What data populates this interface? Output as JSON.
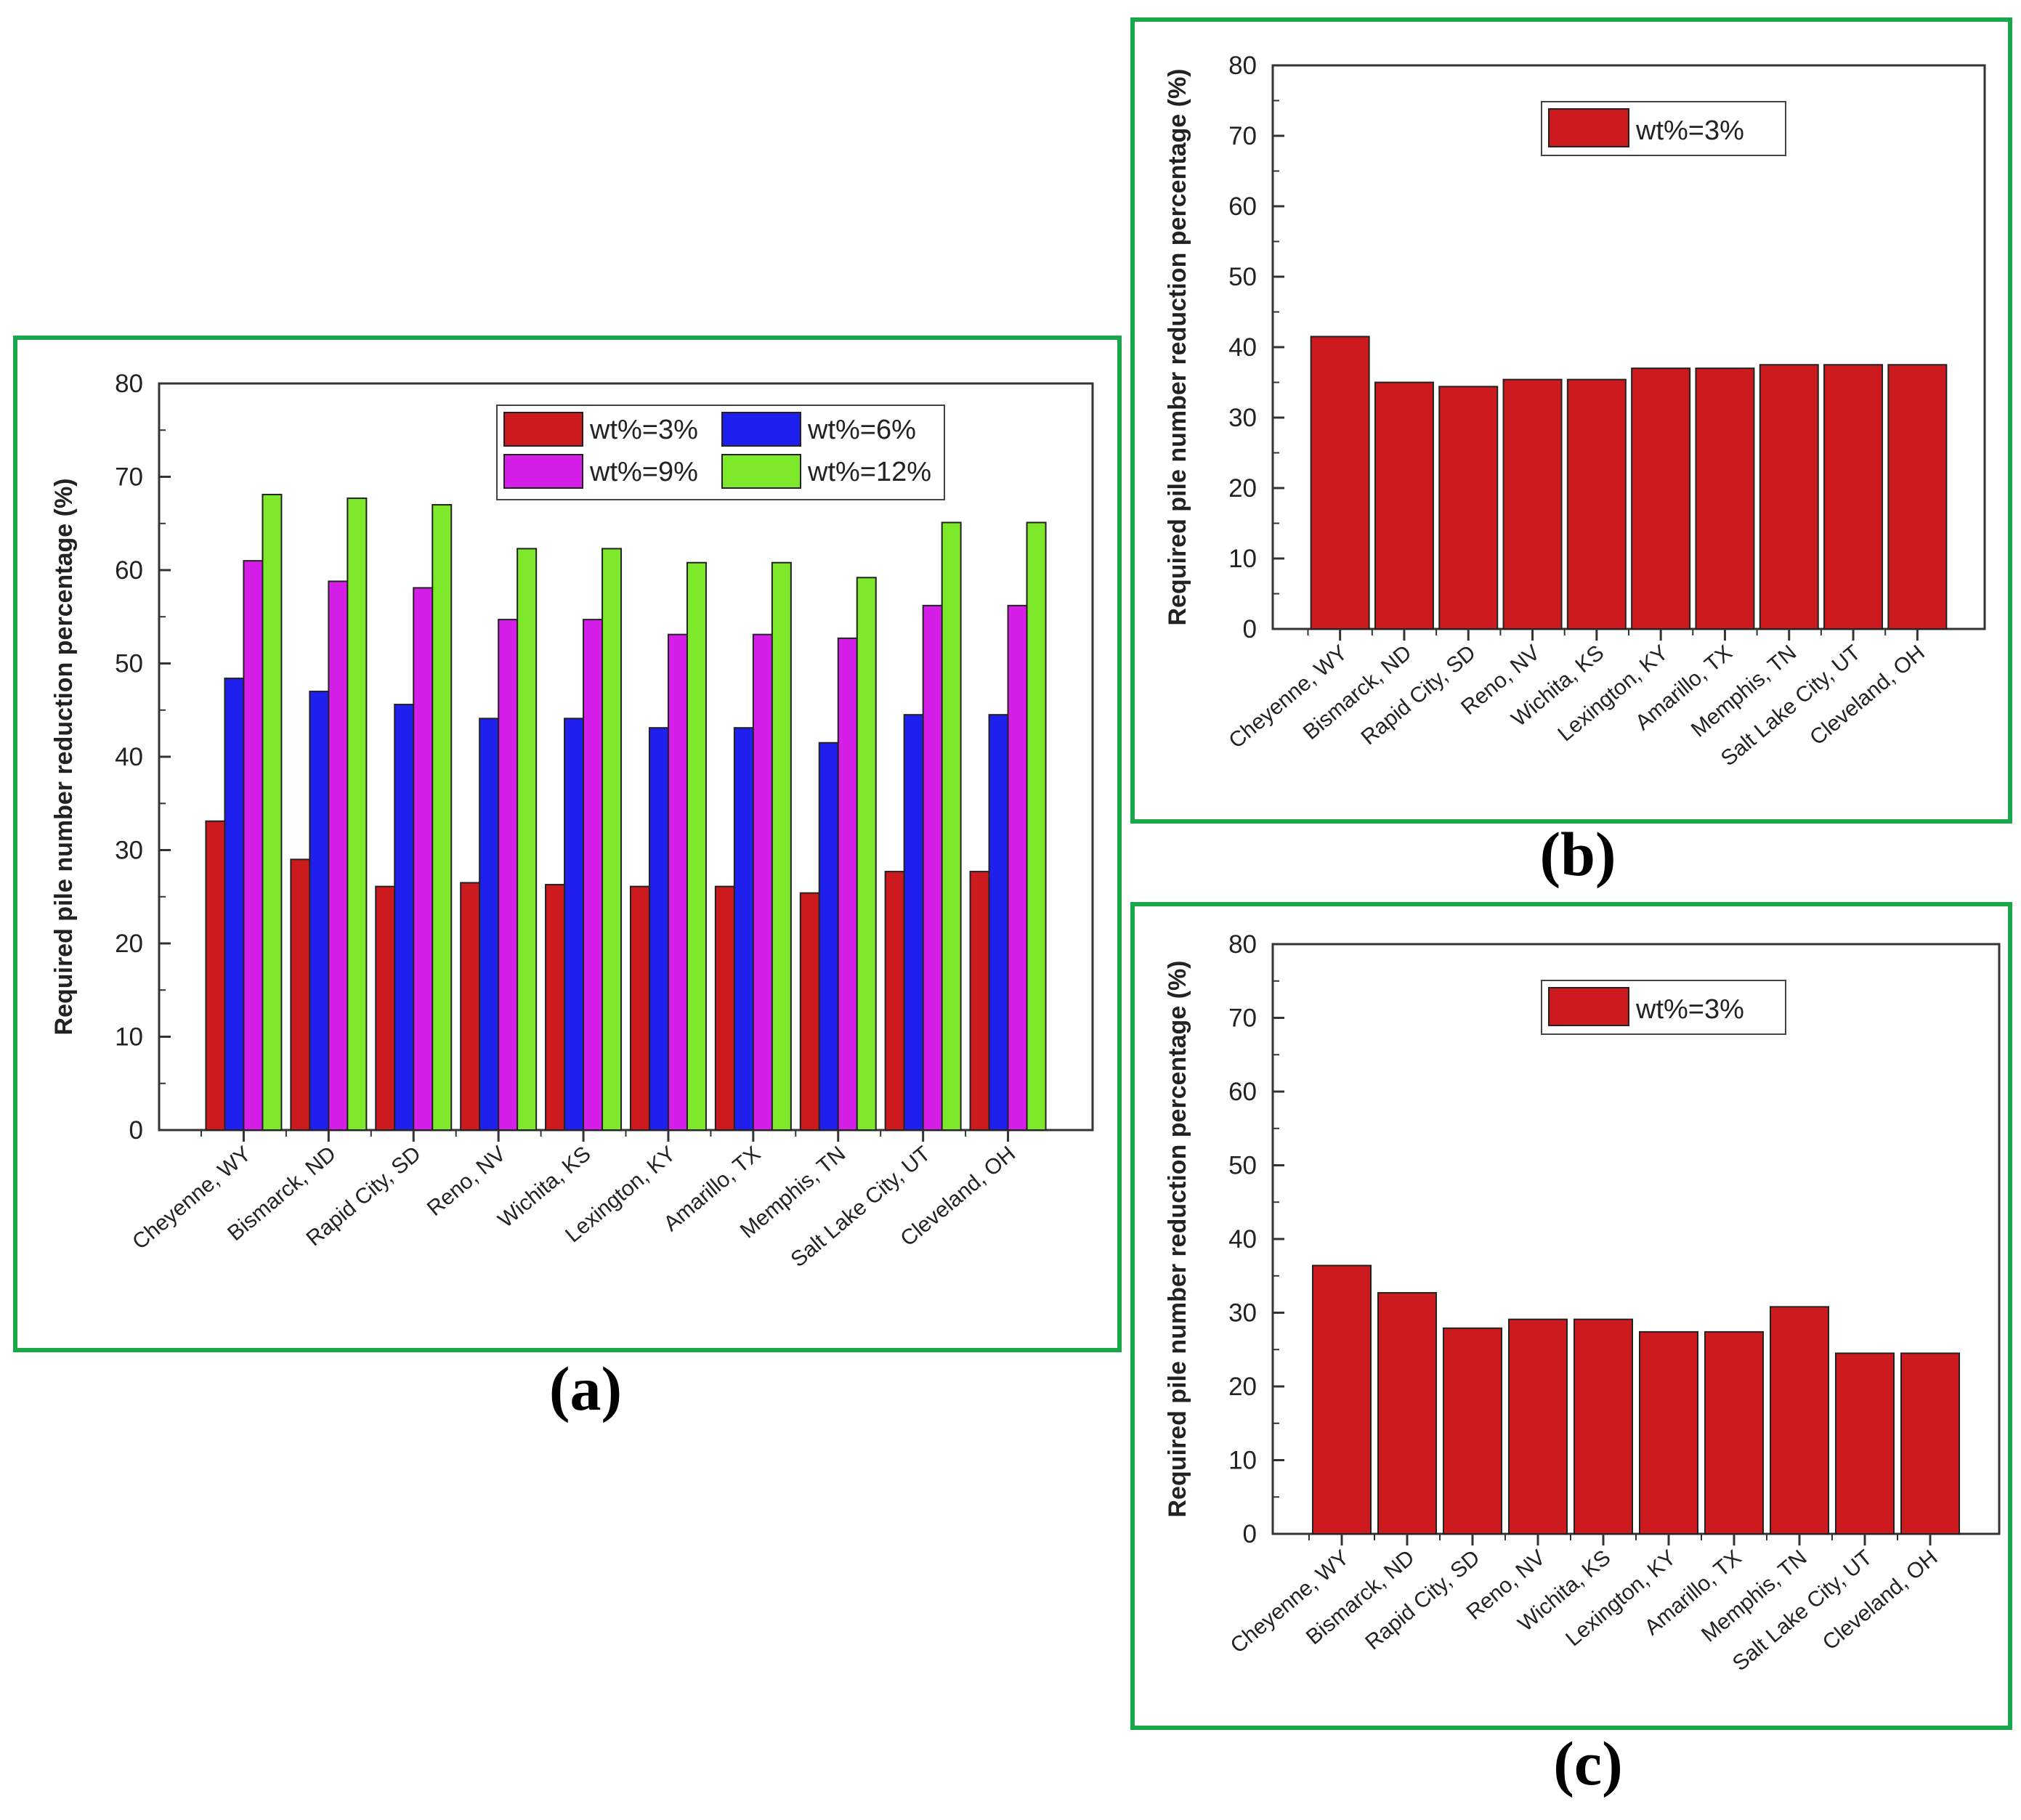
{
  "chart_data": [
    {
      "panel": "a",
      "type": "bar",
      "title": "",
      "caption": "(a)",
      "xlabel": "",
      "ylabel": "Required pile number reduction percentage (%)",
      "ylim": [
        0,
        80
      ],
      "yticks": [
        "0",
        "10",
        "20",
        "30",
        "40",
        "50",
        "60",
        "70",
        "80"
      ],
      "legend_position": "top-right",
      "categories": [
        "Cheyenne, WY",
        "Bismarck, ND",
        "Rapid City, SD",
        "Reno, NV",
        "Wichita, KS",
        "Lexington, KY",
        "Amarillo, TX",
        "Memphis, TN",
        "Salt Lake City, UT",
        "Cleveland, OH"
      ],
      "series": [
        {
          "name": "wt%=3%",
          "color": "#cc1a1f",
          "values": [
            33.1,
            29.0,
            26.1,
            26.5,
            26.3,
            26.1,
            26.1,
            25.4,
            27.7,
            27.7
          ]
        },
        {
          "name": "wt%=6%",
          "color": "#1f1fee",
          "values": [
            48.4,
            47.0,
            45.6,
            44.1,
            44.1,
            43.1,
            43.1,
            41.5,
            44.5,
            44.5
          ]
        },
        {
          "name": "wt%=9%",
          "color": "#d51fe8",
          "values": [
            61.0,
            58.8,
            58.1,
            54.7,
            54.7,
            53.1,
            53.1,
            52.7,
            56.2,
            56.2
          ]
        },
        {
          "name": "wt%=12%",
          "color": "#7ee82a",
          "values": [
            68.1,
            67.7,
            67.0,
            62.3,
            62.3,
            60.8,
            60.8,
            59.2,
            65.1,
            65.1
          ]
        }
      ]
    },
    {
      "panel": "b",
      "type": "bar",
      "title": "",
      "caption": "(b)",
      "xlabel": "",
      "ylabel": "Required pile number reduction percentage (%)",
      "ylim": [
        0,
        80
      ],
      "yticks": [
        "0",
        "10",
        "20",
        "30",
        "40",
        "50",
        "60",
        "70",
        "80"
      ],
      "legend_position": "top-center",
      "categories": [
        "Cheyenne, WY",
        "Bismarck, ND",
        "Rapid City, SD",
        "Reno, NV",
        "Wichita, KS",
        "Lexington, KY",
        "Amarillo, TX",
        "Memphis, TN",
        "Salt Lake City, UT",
        "Cleveland, OH"
      ],
      "series": [
        {
          "name": "wt%=3%",
          "color": "#cc1a1f",
          "values": [
            41.5,
            35.0,
            34.4,
            35.4,
            35.4,
            37.0,
            37.0,
            37.5,
            37.5,
            37.5
          ]
        }
      ]
    },
    {
      "panel": "c",
      "type": "bar",
      "title": "",
      "caption": "(c)",
      "xlabel": "",
      "ylabel": "Required pile number reduction percentage (%)",
      "ylim": [
        0,
        80
      ],
      "yticks": [
        "0",
        "10",
        "20",
        "30",
        "40",
        "50",
        "60",
        "70",
        "80"
      ],
      "legend_position": "top-center",
      "categories": [
        "Cheyenne, WY",
        "Bismarck, ND",
        "Rapid City, SD",
        "Reno, NV",
        "Wichita, KS",
        "Lexington, KY",
        "Amarillo, TX",
        "Memphis, TN",
        "Salt Lake City, UT",
        "Cleveland, OH"
      ],
      "series": [
        {
          "name": "wt%=3%",
          "color": "#cc1a1f",
          "values": [
            36.4,
            32.7,
            27.9,
            29.1,
            29.1,
            27.4,
            27.4,
            30.8,
            24.5,
            24.5
          ]
        }
      ]
    }
  ]
}
